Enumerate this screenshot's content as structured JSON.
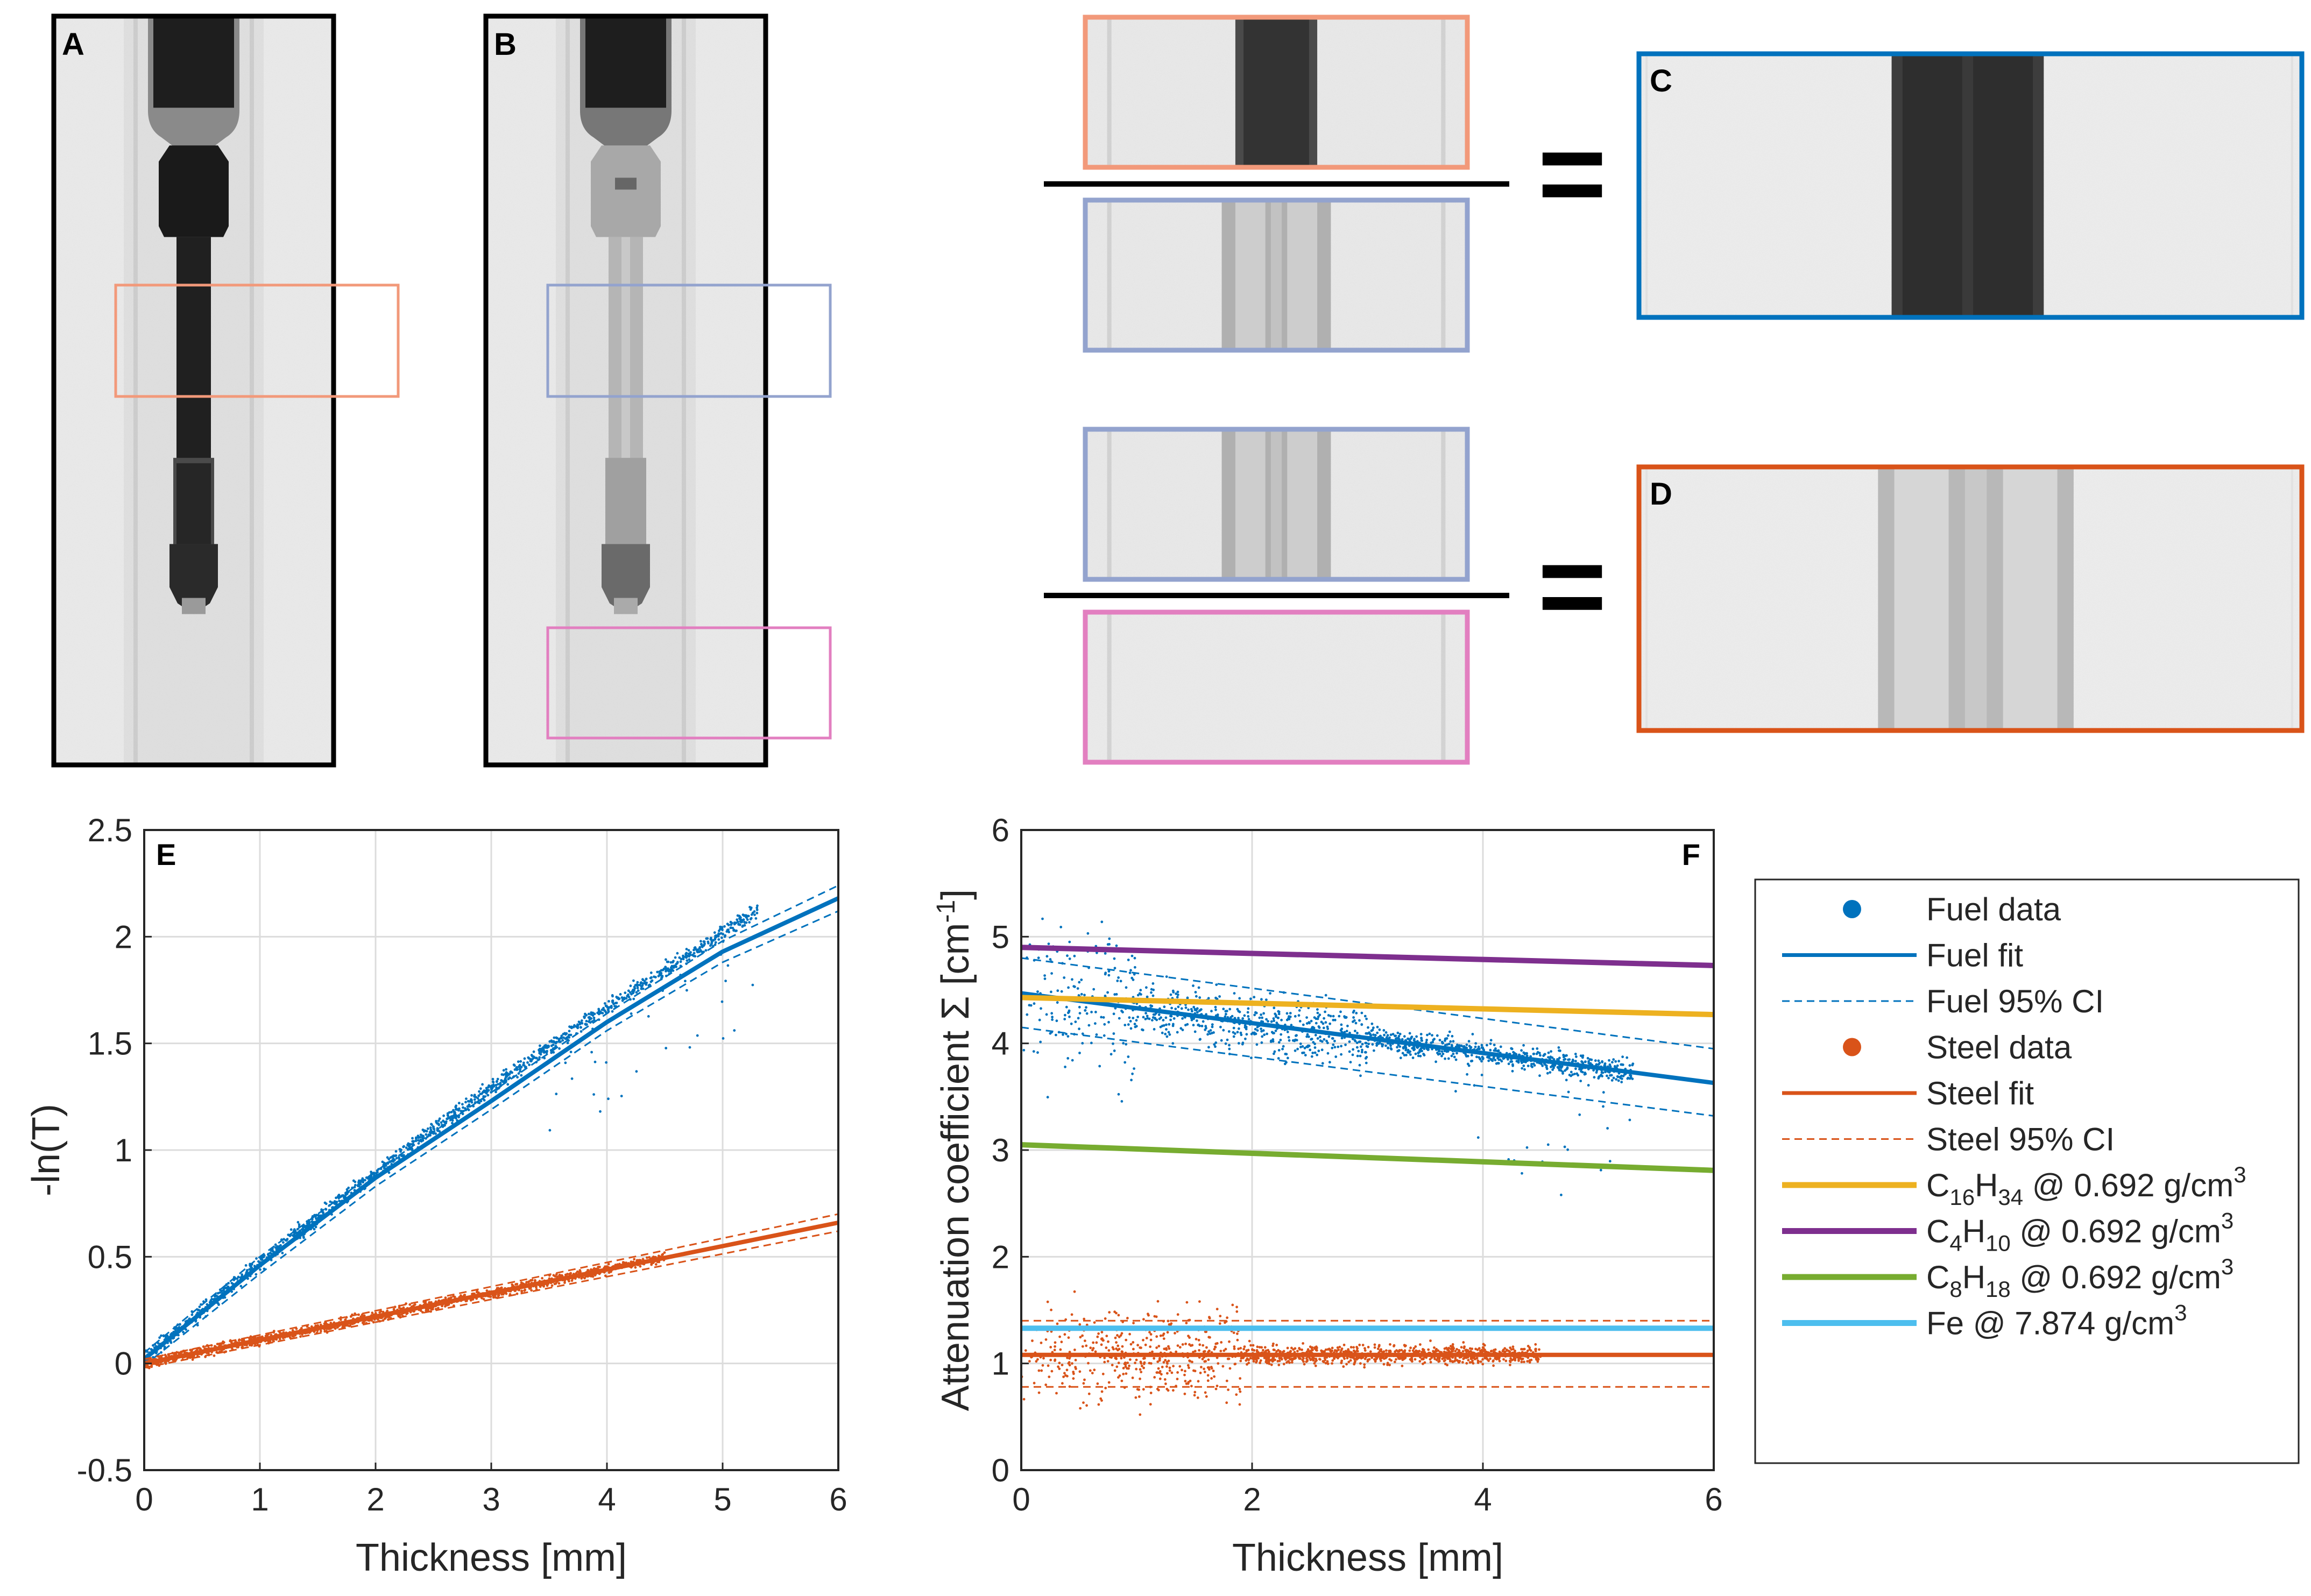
{
  "panels": {
    "A": {
      "label": "A"
    },
    "B": {
      "label": "B"
    },
    "C": {
      "label": "C"
    },
    "D": {
      "label": "D"
    }
  },
  "colors": {
    "fuel": "#0072BD",
    "steel": "#D95319",
    "c16h34": "#EDB120",
    "c4h10": "#7E2F8E",
    "c8h18": "#77AC30",
    "fe": "#4DBEEE",
    "roi_fuel": "#F2997A",
    "roi_empty": "#93A3CE",
    "roi_bg": "#E27FC0"
  },
  "operators": {
    "equals": "="
  },
  "chart_data": [
    {
      "id": "E",
      "label": "E",
      "type": "scatter",
      "xlabel": "Thickness [mm]",
      "ylabel": "-ln(T)",
      "xlim": [
        0,
        6
      ],
      "ylim": [
        -0.5,
        2.5
      ],
      "xticks": [
        0,
        1,
        2,
        3,
        4,
        5,
        6
      ],
      "xtick_labels": [
        "0",
        "1",
        "2",
        "3",
        "4",
        "5",
        "6"
      ],
      "yticks": [
        -0.5,
        0,
        0.5,
        1,
        1.5,
        2,
        2.5
      ],
      "ytick_labels": [
        "-0.5",
        "0",
        "0.5",
        "1",
        "1.5",
        "2",
        "2.5"
      ],
      "grid": true,
      "series": [
        {
          "name": "Fuel data",
          "kind": "points",
          "x_range": [
            0,
            5.3
          ],
          "model": "fuel_ln",
          "spread": 0.06
        },
        {
          "name": "Fuel fit",
          "kind": "line",
          "x": [
            0,
            1,
            2,
            3,
            4,
            5,
            6
          ],
          "y": [
            0.02,
            0.46,
            0.87,
            1.23,
            1.6,
            1.93,
            2.18
          ]
        },
        {
          "name": "Fuel 95% CI upper",
          "kind": "dashed",
          "x": [
            0,
            1,
            2,
            3,
            4,
            5,
            6
          ],
          "y": [
            0.05,
            0.5,
            0.9,
            1.27,
            1.64,
            1.98,
            2.24
          ]
        },
        {
          "name": "Fuel 95% CI lower",
          "kind": "dashed",
          "x": [
            0,
            1,
            2,
            3,
            4,
            5,
            6
          ],
          "y": [
            -0.01,
            0.42,
            0.83,
            1.19,
            1.56,
            1.88,
            2.12
          ]
        },
        {
          "name": "Steel data",
          "kind": "points",
          "x_range": [
            0,
            4.5
          ],
          "model": "steel_ln",
          "spread": 0.04
        },
        {
          "name": "Steel fit",
          "kind": "line",
          "x": [
            0,
            6
          ],
          "y": [
            0,
            0.66
          ]
        },
        {
          "name": "Steel 95% CI upper",
          "kind": "dashed",
          "x": [
            0,
            6
          ],
          "y": [
            0.02,
            0.7
          ]
        },
        {
          "name": "Steel 95% CI lower",
          "kind": "dashed",
          "x": [
            0,
            6
          ],
          "y": [
            -0.02,
            0.62
          ]
        }
      ]
    },
    {
      "id": "F",
      "label": "F",
      "type": "scatter",
      "xlabel": "Thickness [mm]",
      "ylabel": "Attenuation coefficient Σ [cm",
      "ylabel_sup": "-1",
      "ylabel_tail": "]",
      "xlim": [
        0,
        6
      ],
      "ylim": [
        0,
        6
      ],
      "xticks": [
        0,
        2,
        4,
        6
      ],
      "xtick_labels": [
        "0",
        "2",
        "4",
        "6"
      ],
      "yticks": [
        0,
        1,
        2,
        3,
        4,
        5,
        6
      ],
      "ytick_labels": [
        "0",
        "1",
        "2",
        "3",
        "4",
        "5",
        "6"
      ],
      "grid": true,
      "series": [
        {
          "name": "Fuel data",
          "kind": "points",
          "x_range": [
            0,
            5.3
          ],
          "center": [
            4.5,
            3.65
          ],
          "spread": 0.2
        },
        {
          "name": "Fuel fit",
          "kind": "line",
          "x": [
            0,
            6
          ],
          "y": [
            4.47,
            3.63
          ]
        },
        {
          "name": "Fuel 95% CI upper",
          "kind": "dashed",
          "x": [
            0,
            6
          ],
          "y": [
            4.8,
            3.95
          ]
        },
        {
          "name": "Fuel 95% CI lower",
          "kind": "dashed",
          "x": [
            0,
            6
          ],
          "y": [
            4.15,
            3.32
          ]
        },
        {
          "name": "Steel data",
          "kind": "points",
          "x_range": [
            0,
            4.5
          ],
          "center": [
            1.08,
            1.08
          ],
          "spread": 0.15
        },
        {
          "name": "Steel fit",
          "kind": "line",
          "x": [
            0,
            6
          ],
          "y": [
            1.08,
            1.08
          ]
        },
        {
          "name": "Steel 95% CI upper",
          "kind": "dashed",
          "x": [
            0,
            6
          ],
          "y": [
            1.4,
            1.4
          ]
        },
        {
          "name": "Steel 95% CI lower",
          "kind": "dashed",
          "x": [
            0,
            6
          ],
          "y": [
            0.78,
            0.78
          ]
        },
        {
          "name": "C16H34 @ 0.692 g/cm3",
          "kind": "line",
          "x": [
            0,
            6
          ],
          "y": [
            4.43,
            4.27
          ]
        },
        {
          "name": "C4H10 @ 0.692 g/cm3",
          "kind": "line",
          "x": [
            0,
            6
          ],
          "y": [
            4.9,
            4.73
          ]
        },
        {
          "name": "C8H18 @ 0.692 g/cm3",
          "kind": "line",
          "x": [
            0,
            6
          ],
          "y": [
            3.05,
            2.81
          ]
        },
        {
          "name": "Fe @ 7.874 g/cm3",
          "kind": "line",
          "x": [
            0,
            6
          ],
          "y": [
            1.33,
            1.33
          ]
        }
      ]
    }
  ],
  "legend": {
    "position": "right",
    "items": [
      {
        "kind": "marker",
        "color_key": "fuel",
        "text": "Fuel data"
      },
      {
        "kind": "solid",
        "color_key": "fuel",
        "text": "Fuel fit"
      },
      {
        "kind": "dashed",
        "color_key": "fuel",
        "text": "Fuel 95% CI"
      },
      {
        "kind": "marker",
        "color_key": "steel",
        "text": "Steel data"
      },
      {
        "kind": "solid",
        "color_key": "steel",
        "text": "Steel fit"
      },
      {
        "kind": "dashed",
        "color_key": "steel",
        "text": "Steel 95% CI"
      },
      {
        "kind": "thick",
        "color_key": "c16h34",
        "text": "C16H34 @ 0.692 g/cm3",
        "parts": [
          [
            "C",
            ""
          ],
          [
            "16",
            "sub"
          ],
          [
            "H",
            ""
          ],
          [
            "34",
            "sub"
          ],
          [
            " @ 0.692 g/cm",
            ""
          ],
          [
            "3",
            "sup"
          ]
        ]
      },
      {
        "kind": "thick",
        "color_key": "c4h10",
        "text": "C4H10 @ 0.692 g/cm3",
        "parts": [
          [
            "C",
            ""
          ],
          [
            "4",
            "sub"
          ],
          [
            "H",
            ""
          ],
          [
            "10",
            "sub"
          ],
          [
            " @ 0.692 g/cm",
            ""
          ],
          [
            "3",
            "sup"
          ]
        ]
      },
      {
        "kind": "thick",
        "color_key": "c8h18",
        "text": "C8H18 @ 0.692 g/cm3",
        "parts": [
          [
            "C",
            ""
          ],
          [
            "8",
            "sub"
          ],
          [
            "H",
            ""
          ],
          [
            "18",
            "sub"
          ],
          [
            " @ 0.692 g/cm",
            ""
          ],
          [
            "3",
            "sup"
          ]
        ]
      },
      {
        "kind": "thick",
        "color_key": "fe",
        "text": "Fe @ 7.874 g/cm3",
        "parts": [
          [
            "Fe @ 7.874 g/cm",
            ""
          ],
          [
            "3",
            "sup"
          ]
        ]
      }
    ]
  }
}
